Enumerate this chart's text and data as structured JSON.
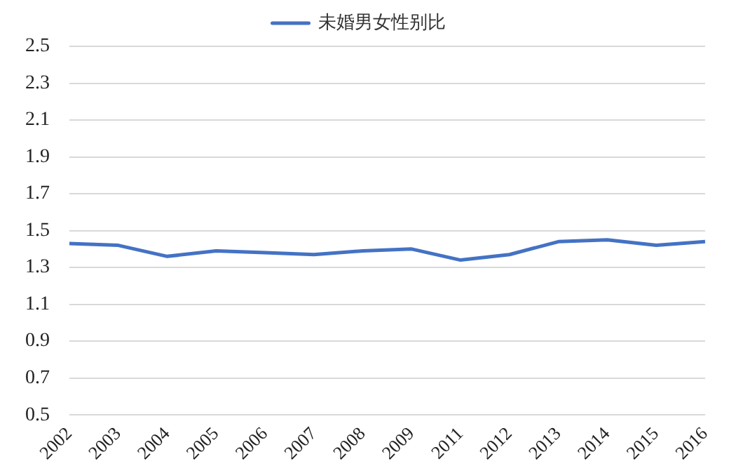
{
  "chart_data": {
    "type": "line",
    "categories": [
      "2002",
      "2003",
      "2004",
      "2005",
      "2006",
      "2007",
      "2008",
      "2009",
      "2011",
      "2012",
      "2013",
      "2014",
      "2015",
      "2016"
    ],
    "series": [
      {
        "name": "未婚男女性别比",
        "color": "#4472c4",
        "values": [
          1.43,
          1.42,
          1.36,
          1.39,
          1.38,
          1.37,
          1.39,
          1.4,
          1.34,
          1.37,
          1.44,
          1.45,
          1.42,
          1.44
        ]
      }
    ],
    "ylim": [
      0.5,
      2.5
    ],
    "yticks": [
      0.5,
      0.7,
      0.9,
      1.1,
      1.3,
      1.5,
      1.7,
      1.9,
      2.1,
      2.3,
      2.5
    ],
    "grid": "y",
    "legend": "top",
    "marker": "none"
  }
}
